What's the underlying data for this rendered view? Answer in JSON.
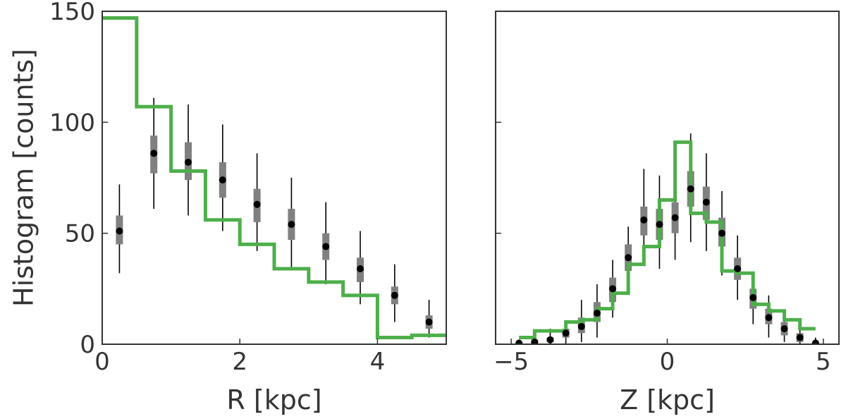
{
  "colors": {
    "model_line": "#4daf4a",
    "data_point": "#000000",
    "error_box": "#808080",
    "axis": "#333333"
  },
  "chart_data": [
    {
      "type": "line",
      "subtype": "step-histogram-with-errorbars",
      "xlabel": "R [kpc]",
      "ylabel": "Histogram [counts]",
      "xlim": [
        0,
        5
      ],
      "ylim": [
        0,
        150
      ],
      "xticks": [
        0,
        2,
        4
      ],
      "yticks": [
        0,
        50,
        100,
        150
      ],
      "grid": false,
      "model_steps": {
        "edges": [
          0,
          0.5,
          1.0,
          1.5,
          2.0,
          2.5,
          3.0,
          3.5,
          4.0,
          4.5,
          5.0
        ],
        "values": [
          147,
          107,
          78,
          56,
          45,
          34,
          28,
          22,
          3,
          4
        ]
      },
      "data_points": [
        {
          "x": 0.25,
          "y": 51,
          "box": [
            45,
            58
          ],
          "err": [
            32,
            72
          ]
        },
        {
          "x": 0.75,
          "y": 86,
          "box": [
            77,
            94
          ],
          "err": [
            61,
            111
          ]
        },
        {
          "x": 1.25,
          "y": 82,
          "box": [
            74,
            91
          ],
          "err": [
            58,
            108
          ]
        },
        {
          "x": 1.75,
          "y": 74,
          "box": [
            66,
            82
          ],
          "err": [
            51,
            99
          ]
        },
        {
          "x": 2.25,
          "y": 63,
          "box": [
            55,
            70
          ],
          "err": [
            42,
            86
          ]
        },
        {
          "x": 2.75,
          "y": 54,
          "box": [
            47,
            61
          ],
          "err": [
            34,
            75
          ]
        },
        {
          "x": 3.25,
          "y": 44,
          "box": [
            38,
            50
          ],
          "err": [
            27,
            64
          ]
        },
        {
          "x": 3.75,
          "y": 34,
          "box": [
            28,
            39
          ],
          "err": [
            18,
            51
          ]
        },
        {
          "x": 4.25,
          "y": 22,
          "box": [
            18,
            26
          ],
          "err": [
            10,
            36
          ]
        },
        {
          "x": 4.75,
          "y": 10,
          "box": [
            7,
            13
          ],
          "err": [
            3,
            20
          ]
        }
      ]
    },
    {
      "type": "line",
      "subtype": "step-histogram-with-errorbars",
      "xlabel": "Z [kpc]",
      "ylabel": "",
      "xlim": [
        -5.5,
        5.5
      ],
      "ylim": [
        0,
        150
      ],
      "xticks": [
        -5,
        0,
        5
      ],
      "yticks": [
        0,
        50,
        100,
        150
      ],
      "ytick_labels_shown": false,
      "grid": false,
      "model_steps": {
        "edges": [
          -4.75,
          -4.25,
          -3.75,
          -3.25,
          -2.75,
          -2.25,
          -1.75,
          -1.25,
          -0.75,
          -0.25,
          0.25,
          0.75,
          1.25,
          1.75,
          2.25,
          2.75,
          3.25,
          3.75,
          4.25,
          4.75
        ],
        "values": [
          3,
          6,
          6,
          10,
          11,
          16,
          23,
          36,
          44,
          65,
          91,
          59,
          55,
          33,
          32,
          18,
          15,
          11,
          7
        ]
      },
      "data_points": [
        {
          "x": -4.75,
          "y": 0.5,
          "box": [
            0,
            1
          ],
          "err": [
            0,
            2
          ]
        },
        {
          "x": -4.25,
          "y": 1,
          "box": [
            0,
            2
          ],
          "err": [
            0,
            3
          ]
        },
        {
          "x": -3.75,
          "y": 2,
          "box": [
            1,
            3
          ],
          "err": [
            0,
            7
          ]
        },
        {
          "x": -3.25,
          "y": 5,
          "box": [
            3,
            7
          ],
          "err": [
            0,
            10
          ]
        },
        {
          "x": -2.75,
          "y": 8,
          "box": [
            5,
            12
          ],
          "err": [
            1,
            20
          ]
        },
        {
          "x": -2.25,
          "y": 14,
          "box": [
            10,
            19
          ],
          "err": [
            3,
            27
          ]
        },
        {
          "x": -1.75,
          "y": 25,
          "box": [
            19,
            30
          ],
          "err": [
            12,
            38
          ]
        },
        {
          "x": -1.25,
          "y": 39,
          "box": [
            33,
            45
          ],
          "err": [
            23,
            53
          ]
        },
        {
          "x": -0.75,
          "y": 56,
          "box": [
            49,
            62
          ],
          "err": [
            37,
            79
          ]
        },
        {
          "x": -0.25,
          "y": 54,
          "box": [
            47,
            61
          ],
          "err": [
            34,
            76
          ]
        },
        {
          "x": 0.25,
          "y": 57,
          "box": [
            50,
            64
          ],
          "err": [
            38,
            80
          ]
        },
        {
          "x": 0.75,
          "y": 70,
          "box": [
            62,
            78
          ],
          "err": [
            46,
            95
          ]
        },
        {
          "x": 1.25,
          "y": 64,
          "box": [
            56,
            71
          ],
          "err": [
            42,
            86
          ]
        },
        {
          "x": 1.75,
          "y": 50,
          "box": [
            44,
            57
          ],
          "err": [
            31,
            69
          ]
        },
        {
          "x": 2.25,
          "y": 34,
          "box": [
            29,
            39
          ],
          "err": [
            20,
            49
          ]
        },
        {
          "x": 2.75,
          "y": 21,
          "box": [
            16,
            25
          ],
          "err": [
            9,
            32
          ]
        },
        {
          "x": 3.25,
          "y": 12,
          "box": [
            9,
            16
          ],
          "err": [
            3,
            22
          ]
        },
        {
          "x": 3.75,
          "y": 7,
          "box": [
            4,
            10
          ],
          "err": [
            1,
            15
          ]
        },
        {
          "x": 4.25,
          "y": 3,
          "box": [
            1,
            5
          ],
          "err": [
            0,
            8
          ]
        },
        {
          "x": 4.75,
          "y": 0.5,
          "box": [
            0,
            1
          ],
          "err": [
            0,
            3
          ]
        }
      ]
    }
  ]
}
